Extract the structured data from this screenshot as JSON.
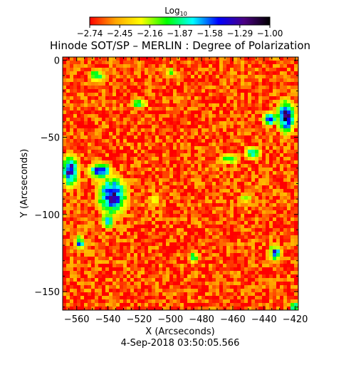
{
  "chart_data": {
    "type": "heatmap",
    "title": "Hinode SOT/SP – MERLIN : Degree of Polarization",
    "xlabel": "X (Arcseconds)",
    "ylabel": "Y (Arcseconds)",
    "timestamp": "4-Sep-2018 03:50:05.566",
    "xlim": [
      -569,
      -418
    ],
    "ylim": [
      -162,
      2
    ],
    "x_ticks": [
      {
        "value": -560,
        "label": "−560"
      },
      {
        "value": -540,
        "label": "−540"
      },
      {
        "value": -520,
        "label": "−520"
      },
      {
        "value": -500,
        "label": "−500"
      },
      {
        "value": -480,
        "label": "−480"
      },
      {
        "value": -460,
        "label": "−460"
      },
      {
        "value": -440,
        "label": "−440"
      },
      {
        "value": -420,
        "label": "−420"
      }
    ],
    "y_ticks": [
      {
        "value": 0,
        "label": "0"
      },
      {
        "value": -50,
        "label": "−50"
      },
      {
        "value": -100,
        "label": "−100"
      },
      {
        "value": -150,
        "label": "−150"
      }
    ],
    "colorbar": {
      "label": "Log",
      "label_sub": "10",
      "range": [
        -2.74,
        -1.0
      ],
      "tick_labels": [
        "−2.74",
        "−2.45",
        "−2.16",
        "−1.87",
        "−1.58",
        "−1.29",
        "−1.00"
      ],
      "colors": [
        "#ff0000",
        "#ffa500",
        "#ffff00",
        "#00ff00",
        "#00ffff",
        "#0000ff",
        "#4b0082",
        "#000000"
      ]
    },
    "background_level": -2.65,
    "high_regions": [
      {
        "x": -564,
        "y": -72,
        "rx": 5,
        "ry": 10,
        "level": -1.3
      },
      {
        "x": -545,
        "y": -72,
        "rx": 7,
        "ry": 5,
        "level": -1.4
      },
      {
        "x": -537,
        "y": -88,
        "rx": 9,
        "ry": 12,
        "level": -1.35
      },
      {
        "x": -540,
        "y": -104,
        "rx": 4,
        "ry": 5,
        "level": -1.6
      },
      {
        "x": -558,
        "y": -118,
        "rx": 3,
        "ry": 5,
        "level": -1.7
      },
      {
        "x": -426,
        "y": -37,
        "rx": 6,
        "ry": 10,
        "level": -1.3
      },
      {
        "x": -436,
        "y": -38,
        "rx": 5,
        "ry": 4,
        "level": -1.45
      },
      {
        "x": -447,
        "y": -60,
        "rx": 5,
        "ry": 4,
        "level": -1.7
      },
      {
        "x": -462,
        "y": -64,
        "rx": 6,
        "ry": 3,
        "level": -1.8
      },
      {
        "x": -520,
        "y": -28,
        "rx": 5,
        "ry": 3,
        "level": -1.8
      },
      {
        "x": -433,
        "y": -125,
        "rx": 4,
        "ry": 5,
        "level": -1.6
      },
      {
        "x": -420,
        "y": -160,
        "rx": 3,
        "ry": 3,
        "level": -1.6
      },
      {
        "x": -547,
        "y": -10,
        "rx": 5,
        "ry": 4,
        "level": -1.9
      },
      {
        "x": -500,
        "y": -8,
        "rx": 3,
        "ry": 3,
        "level": -2.0
      },
      {
        "x": -485,
        "y": -128,
        "rx": 3,
        "ry": 4,
        "level": -1.9
      },
      {
        "x": -452,
        "y": -90,
        "rx": 4,
        "ry": 3,
        "level": -2.0
      },
      {
        "x": -510,
        "y": -90,
        "rx": 3,
        "ry": 3,
        "level": -2.0
      }
    ]
  }
}
